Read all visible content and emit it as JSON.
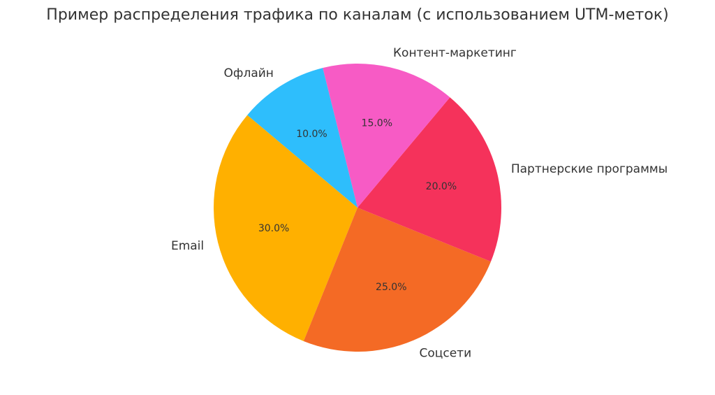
{
  "chart_data": {
    "type": "pie",
    "title": "Пример распределения трафика по каналам (с использованием UTM-меток)",
    "categories": [
      "Email",
      "Соцсети",
      "Партнерские программы",
      "Контент-маркетинг",
      "Офлайн"
    ],
    "values": [
      30,
      25,
      20,
      15,
      10
    ],
    "value_labels": [
      "30.0%",
      "25.0%",
      "20.0%",
      "15.0%",
      "10.0%"
    ],
    "colors": [
      "#ffb000",
      "#f46a25",
      "#f5325b",
      "#f75bc5",
      "#2ebefc"
    ],
    "start_angle": 140
  }
}
